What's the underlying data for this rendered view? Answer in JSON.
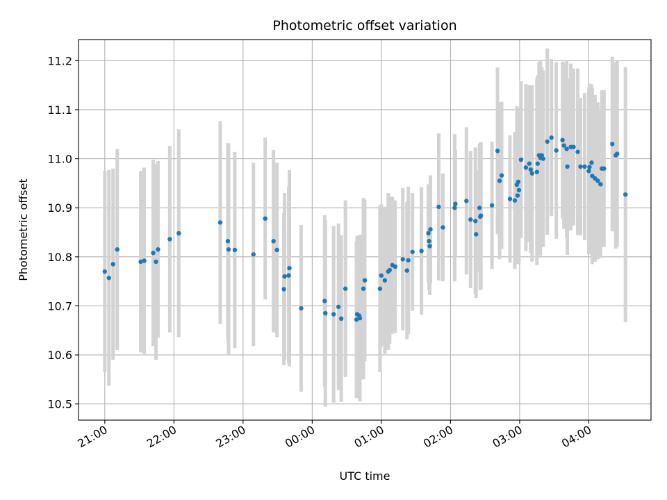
{
  "chart_data": {
    "type": "scatter",
    "title": "Photometric offset variation",
    "xlabel": "UTC time",
    "ylabel": "Photometric offset",
    "grid": true,
    "x_unit": "hour",
    "xlim": [
      -0.38,
      7.9
    ],
    "ylim": [
      10.467,
      11.243
    ],
    "x_ticks": [
      {
        "value": 0,
        "label": "21:00"
      },
      {
        "value": 1,
        "label": "22:00"
      },
      {
        "value": 2,
        "label": "23:00"
      },
      {
        "value": 3,
        "label": "00:00"
      },
      {
        "value": 4,
        "label": "01:00"
      },
      {
        "value": 5,
        "label": "02:00"
      },
      {
        "value": 6,
        "label": "03:00"
      },
      {
        "value": 7,
        "label": "04:00"
      }
    ],
    "y_ticks": [
      {
        "value": 10.5,
        "label": "10.5"
      },
      {
        "value": 10.6,
        "label": "10.6"
      },
      {
        "value": 10.7,
        "label": "10.7"
      },
      {
        "value": 10.8,
        "label": "10.8"
      },
      {
        "value": 10.9,
        "label": "10.9"
      },
      {
        "value": 11.0,
        "label": "11.0"
      },
      {
        "value": 11.1,
        "label": "11.1"
      },
      {
        "value": 11.2,
        "label": "11.2"
      }
    ],
    "colors": {
      "point": "#1f77b4",
      "errorbar": "#d3d3d3",
      "grid": "#b0b0b0"
    },
    "series": [
      {
        "points": [
          [
            0.0,
            10.77,
            0.205
          ],
          [
            0.06,
            10.757,
            0.22
          ],
          [
            0.12,
            10.785,
            0.195
          ],
          [
            0.18,
            10.815,
            0.205
          ],
          [
            0.52,
            10.79,
            0.185
          ],
          [
            0.57,
            10.792,
            0.19
          ],
          [
            0.7,
            10.808,
            0.19
          ],
          [
            0.74,
            10.79,
            0.2
          ],
          [
            0.77,
            10.815,
            0.18
          ],
          [
            0.94,
            10.836,
            0.19
          ],
          [
            1.07,
            10.848,
            0.212
          ],
          [
            1.67,
            10.87,
            0.207
          ],
          [
            1.78,
            10.832,
            0.2
          ],
          [
            1.79,
            10.815,
            0.215
          ],
          [
            1.88,
            10.814,
            0.2
          ],
          [
            2.15,
            10.805,
            0.187
          ],
          [
            2.32,
            10.878,
            0.165
          ],
          [
            2.44,
            10.832,
            0.186
          ],
          [
            2.49,
            10.814,
            0.178
          ],
          [
            2.59,
            10.734,
            0.155
          ],
          [
            2.6,
            10.76,
            0.17
          ],
          [
            2.66,
            10.762,
            0.18
          ],
          [
            2.67,
            10.777,
            0.2
          ],
          [
            2.84,
            10.695,
            0.17
          ],
          [
            3.18,
            10.71,
            0.175
          ],
          [
            3.19,
            10.685,
            0.19
          ],
          [
            3.31,
            10.683,
            0.18
          ],
          [
            3.38,
            10.698,
            0.17
          ],
          [
            3.42,
            10.674,
            0.17
          ],
          [
            3.48,
            10.735,
            0.18
          ],
          [
            3.64,
            10.672,
            0.16
          ],
          [
            3.65,
            10.683,
            0.16
          ],
          [
            3.68,
            10.68,
            0.16
          ],
          [
            3.69,
            10.675,
            0.17
          ],
          [
            3.74,
            10.735,
            0.185
          ],
          [
            3.76,
            10.752,
            0.165
          ],
          [
            3.98,
            10.735,
            0.17
          ],
          [
            4.0,
            10.762,
            0.145
          ],
          [
            4.05,
            10.752,
            0.15
          ],
          [
            4.1,
            10.77,
            0.16
          ],
          [
            4.12,
            10.773,
            0.15
          ],
          [
            4.16,
            10.783,
            0.14
          ],
          [
            4.2,
            10.78,
            0.135
          ],
          [
            4.31,
            10.795,
            0.145
          ],
          [
            4.37,
            10.772,
            0.14
          ],
          [
            4.39,
            10.793,
            0.15
          ],
          [
            4.45,
            10.81,
            0.12
          ],
          [
            4.58,
            10.812,
            0.13
          ],
          [
            4.68,
            10.848,
            0.1
          ],
          [
            4.69,
            10.832,
            0.1
          ],
          [
            4.7,
            10.822,
            0.1
          ],
          [
            4.71,
            10.856,
            0.11
          ],
          [
            4.83,
            10.902,
            0.15
          ],
          [
            4.89,
            10.86,
            0.11
          ],
          [
            5.06,
            10.9,
            0.15
          ],
          [
            5.07,
            10.908,
            0.11
          ],
          [
            5.23,
            10.914,
            0.15
          ],
          [
            5.29,
            10.876,
            0.14
          ],
          [
            5.36,
            10.873,
            0.15
          ],
          [
            5.37,
            10.846,
            0.13
          ],
          [
            5.42,
            10.9,
            0.13
          ],
          [
            5.43,
            10.882,
            0.15
          ],
          [
            5.44,
            10.884,
            0.15
          ],
          [
            5.6,
            10.905,
            0.13
          ],
          [
            5.68,
            11.016,
            0.17
          ],
          [
            5.71,
            10.955,
            0.16
          ],
          [
            5.74,
            10.966,
            0.15
          ],
          [
            5.86,
            10.918,
            0.13
          ],
          [
            5.93,
            10.915,
            0.14
          ],
          [
            5.96,
            10.947,
            0.16
          ],
          [
            5.97,
            10.925,
            0.14
          ],
          [
            5.98,
            10.953,
            0.15
          ],
          [
            5.99,
            10.936,
            0.15
          ],
          [
            6.02,
            10.998,
            0.16
          ],
          [
            6.09,
            10.982,
            0.17
          ],
          [
            6.14,
            10.99,
            0.16
          ],
          [
            6.16,
            10.978,
            0.17
          ],
          [
            6.18,
            10.97,
            0.18
          ],
          [
            6.25,
            10.973,
            0.19
          ],
          [
            6.26,
            10.99,
            0.18
          ],
          [
            6.28,
            11.007,
            0.19
          ],
          [
            6.3,
            11.002,
            0.2
          ],
          [
            6.32,
            11.007,
            0.18
          ],
          [
            6.34,
            11.0,
            0.18
          ],
          [
            6.4,
            11.035,
            0.19
          ],
          [
            6.46,
            11.043,
            0.16
          ],
          [
            6.53,
            11.017,
            0.18
          ],
          [
            6.62,
            11.038,
            0.16
          ],
          [
            6.64,
            11.027,
            0.17
          ],
          [
            6.68,
            11.02,
            0.18
          ],
          [
            6.69,
            10.984,
            0.18
          ],
          [
            6.74,
            11.024,
            0.17
          ],
          [
            6.78,
            11.024,
            0.16
          ],
          [
            6.84,
            11.014,
            0.17
          ],
          [
            6.88,
            10.984,
            0.14
          ],
          [
            6.94,
            10.984,
            0.15
          ],
          [
            7.0,
            10.975,
            0.17
          ],
          [
            7.01,
            10.983,
            0.17
          ],
          [
            7.04,
            10.992,
            0.16
          ],
          [
            7.05,
            10.965,
            0.18
          ],
          [
            7.09,
            10.96,
            0.17
          ],
          [
            7.13,
            10.955,
            0.16
          ],
          [
            7.17,
            10.948,
            0.15
          ],
          [
            7.19,
            10.98,
            0.16
          ],
          [
            7.22,
            10.98,
            0.16
          ],
          [
            7.34,
            11.03,
            0.178
          ],
          [
            7.39,
            11.007,
            0.19
          ],
          [
            7.41,
            11.01,
            0.19
          ],
          [
            7.53,
            10.927,
            0.26
          ]
        ]
      }
    ]
  }
}
